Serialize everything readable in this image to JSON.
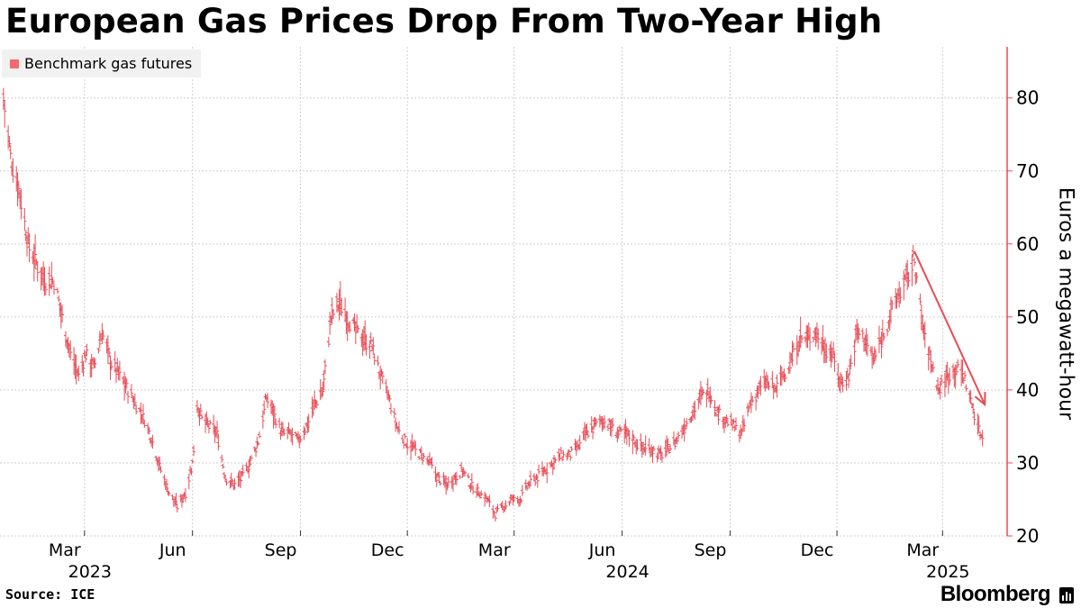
{
  "chart_data": {
    "type": "line",
    "title": "European Gas Prices Drop From Two-Year High",
    "series": [
      {
        "name": "Benchmark gas futures",
        "color": "#e84b55",
        "x": [
          "2022-12-22",
          "2022-12-28",
          "2023-01-05",
          "2023-01-12",
          "2023-01-20",
          "2023-01-27",
          "2023-02-03",
          "2023-02-10",
          "2023-02-17",
          "2023-02-24",
          "2023-03-02",
          "2023-03-09",
          "2023-03-16",
          "2023-03-23",
          "2023-03-31",
          "2023-04-07",
          "2023-04-14",
          "2023-04-21",
          "2023-04-28",
          "2023-05-05",
          "2023-05-12",
          "2023-05-19",
          "2023-05-26",
          "2023-06-01",
          "2023-06-05",
          "2023-06-09",
          "2023-06-15",
          "2023-06-22",
          "2023-06-29",
          "2023-07-06",
          "2023-07-13",
          "2023-07-20",
          "2023-07-27",
          "2023-08-03",
          "2023-08-09",
          "2023-08-16",
          "2023-08-23",
          "2023-08-30",
          "2023-09-06",
          "2023-09-13",
          "2023-09-20",
          "2023-09-27",
          "2023-10-04",
          "2023-10-11",
          "2023-10-18",
          "2023-10-25",
          "2023-11-01",
          "2023-11-08",
          "2023-11-15",
          "2023-11-22",
          "2023-11-29",
          "2023-12-06",
          "2023-12-13",
          "2023-12-20",
          "2023-12-27",
          "2024-01-03",
          "2024-01-10",
          "2024-01-17",
          "2024-01-24",
          "2024-01-31",
          "2024-02-07",
          "2024-02-14",
          "2024-02-21",
          "2024-02-28",
          "2024-03-06",
          "2024-03-13",
          "2024-03-20",
          "2024-03-27",
          "2024-04-03",
          "2024-04-10",
          "2024-04-17",
          "2024-04-24",
          "2024-05-01",
          "2024-05-08",
          "2024-05-15",
          "2024-05-22",
          "2024-05-29",
          "2024-06-05",
          "2024-06-12",
          "2024-06-19",
          "2024-06-26",
          "2024-07-03",
          "2024-07-10",
          "2024-07-17",
          "2024-07-24",
          "2024-07-31",
          "2024-08-07",
          "2024-08-14",
          "2024-08-21",
          "2024-08-28",
          "2024-09-04",
          "2024-09-11",
          "2024-09-18",
          "2024-09-25",
          "2024-10-02",
          "2024-10-09",
          "2024-10-16",
          "2024-10-23",
          "2024-10-30",
          "2024-11-06",
          "2024-11-13",
          "2024-11-20",
          "2024-11-27",
          "2024-12-04",
          "2024-12-11",
          "2024-12-18",
          "2024-12-25",
          "2025-01-01",
          "2025-01-08",
          "2025-01-15",
          "2025-01-22",
          "2025-01-29",
          "2025-02-05",
          "2025-02-11",
          "2025-02-14",
          "2025-02-19",
          "2025-02-26",
          "2025-03-05",
          "2025-03-12",
          "2025-03-19",
          "2025-03-26",
          "2025-04-02",
          "2025-04-07"
        ],
        "values": [
          80,
          72,
          67,
          60,
          57,
          55,
          55,
          50,
          45,
          42,
          45,
          43,
          48,
          44,
          42,
          40,
          38,
          36,
          33,
          29,
          26,
          24,
          26,
          30,
          38,
          36,
          35,
          34,
          28,
          27,
          28,
          30,
          33,
          39,
          37,
          34,
          34,
          33,
          35,
          38,
          40,
          50,
          52,
          50,
          48,
          47,
          46,
          42,
          39,
          35,
          33,
          32,
          31,
          30,
          28,
          27,
          28,
          29,
          27,
          26,
          25,
          23,
          24,
          25,
          25,
          27,
          28,
          29,
          30,
          31,
          31,
          32,
          34,
          35,
          36,
          35,
          34,
          34,
          33,
          32,
          32,
          31,
          32,
          33,
          35,
          37,
          39,
          40,
          37,
          36,
          35,
          34,
          38,
          40,
          41,
          40,
          42,
          44,
          47,
          47,
          48,
          46,
          45,
          41,
          42,
          48,
          47,
          44,
          47,
          50,
          53,
          55,
          58,
          50,
          47,
          44,
          40,
          42,
          43,
          42,
          38,
          34,
          33
        ]
      }
    ],
    "ylim": [
      20,
      87
    ],
    "yticks": [
      20,
      30,
      40,
      50,
      60,
      70,
      80
    ],
    "xrange": [
      "2022-12-19",
      "2025-04-25"
    ],
    "xticks": [
      {
        "date": "2023-03-01",
        "label": "Mar",
        "year": "2023"
      },
      {
        "date": "2023-06-01",
        "label": "Jun"
      },
      {
        "date": "2023-09-01",
        "label": "Sep"
      },
      {
        "date": "2023-12-01",
        "label": "Dec"
      },
      {
        "date": "2024-03-01",
        "label": "Mar"
      },
      {
        "date": "2024-06-01",
        "label": "Jun",
        "year": "2024"
      },
      {
        "date": "2024-09-01",
        "label": "Sep"
      },
      {
        "date": "2024-12-01",
        "label": "Dec"
      },
      {
        "date": "2025-03-01",
        "label": "Mar",
        "year": "2025"
      }
    ],
    "year_labels": [
      "2023",
      "2024",
      "2025"
    ],
    "ylabel": "Euros a megawatt-hour",
    "xlabel": "",
    "annotations": [
      {
        "type": "arrow",
        "from": {
          "date": "2025-02-05",
          "value": 59
        },
        "to": {
          "date": "2025-04-06",
          "value": 38
        }
      }
    ],
    "grid": true,
    "legend": "top-left",
    "axis_color": "#e84b55"
  },
  "header": {
    "title": "European Gas Prices Drop From Two-Year High"
  },
  "legend": {
    "label": "Benchmark gas futures",
    "swatch_color": "#f06a70"
  },
  "footer": {
    "source": "Source: ICE",
    "brand": "Bloomberg"
  }
}
